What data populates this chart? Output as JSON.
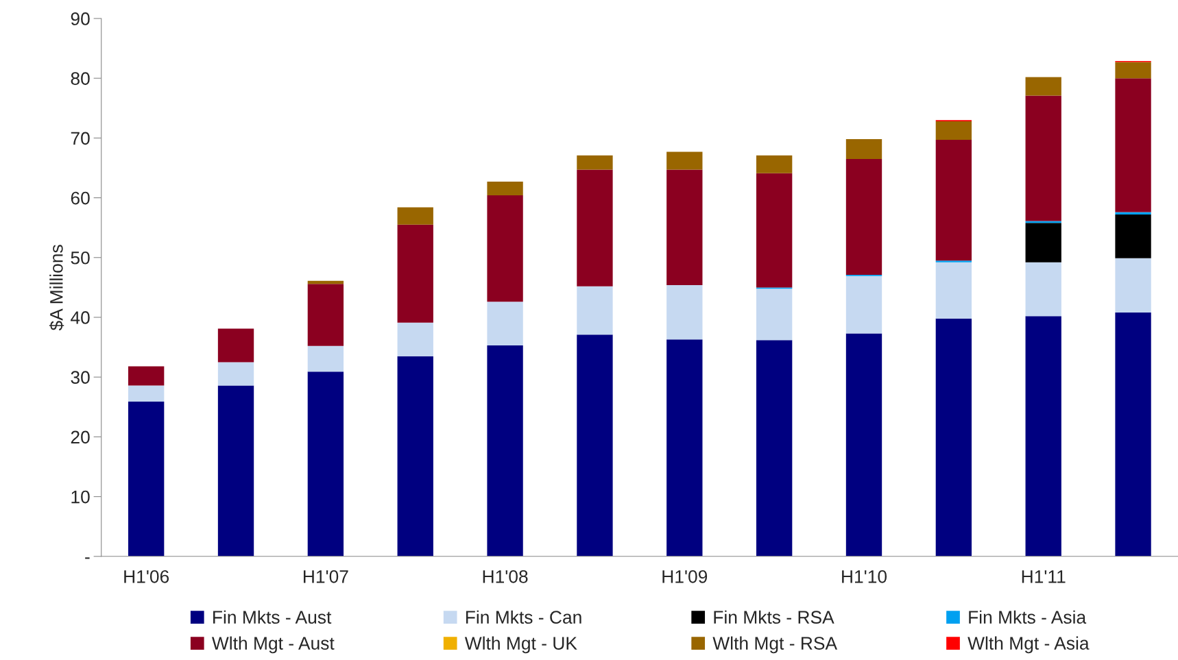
{
  "chart_data": {
    "type": "bar",
    "stacked": true,
    "ylabel": "$A Millions",
    "categories": [
      "H1'06",
      null,
      "H1'07",
      null,
      "H1'08",
      null,
      "H1'09",
      null,
      "H1'10",
      null,
      "H1'11",
      null
    ],
    "series": [
      {
        "name": "Fin Mkts - Aust",
        "color": "#000080",
        "values": [
          25.9,
          28.6,
          30.9,
          33.5,
          35.3,
          37.1,
          36.3,
          36.2,
          37.3,
          39.8,
          40.2,
          40.8
        ]
      },
      {
        "name": "Fin Mkts - Can",
        "color": "#c6d9f1",
        "values": [
          2.7,
          3.9,
          4.3,
          5.6,
          7.3,
          8.1,
          9.1,
          8.6,
          9.6,
          9.4,
          9.0,
          9.1
        ]
      },
      {
        "name": "Fin Mkts - RSA",
        "color": "#000000",
        "values": [
          0,
          0,
          0,
          0,
          0,
          0,
          0,
          0,
          0,
          0,
          6.6,
          7.3
        ]
      },
      {
        "name": "Fin Mkts - Asia",
        "color": "#00a0f0",
        "values": [
          0,
          0,
          0,
          0,
          0,
          0,
          0,
          0.2,
          0.2,
          0.3,
          0.3,
          0.4
        ]
      },
      {
        "name": "Wlth Mgt - Aust",
        "color": "#8b0020",
        "values": [
          3.2,
          5.6,
          10.4,
          16.4,
          17.8,
          19.5,
          19.3,
          19.1,
          19.4,
          20.2,
          21.0,
          22.4
        ]
      },
      {
        "name": "Wlth Mgt - UK",
        "color": "#f0b000",
        "values": [
          0,
          0,
          0,
          0,
          0,
          0,
          0,
          0,
          0,
          0,
          0,
          0
        ]
      },
      {
        "name": "Wlth Mgt - RSA",
        "color": "#996600",
        "values": [
          0,
          0,
          0.5,
          2.9,
          2.3,
          2.4,
          3.0,
          3.0,
          3.3,
          3.1,
          3.1,
          2.7
        ]
      },
      {
        "name": "Wlth Mgt - Asia",
        "color": "#ff0000",
        "values": [
          0,
          0,
          0,
          0,
          0,
          0,
          0,
          0,
          0,
          0.2,
          0,
          0.2
        ]
      }
    ],
    "ylim": [
      0,
      90
    ],
    "yticks": [
      {
        "value": 0,
        "label": "-"
      },
      10,
      20,
      30,
      40,
      50,
      60,
      70,
      80,
      90
    ],
    "grid": false,
    "legend": "bottom"
  }
}
